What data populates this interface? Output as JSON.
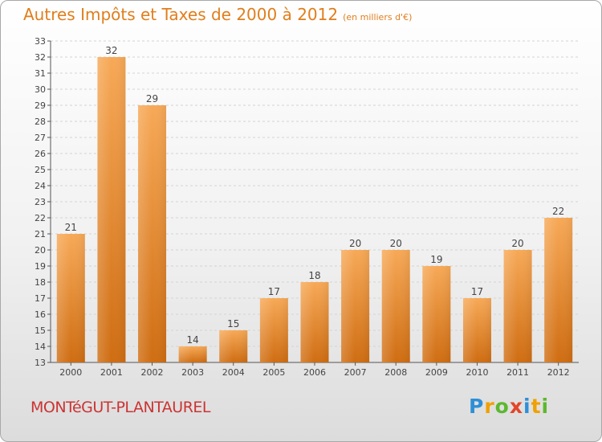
{
  "header": {
    "title": "Autres Impôts et Taxes de 2000 à 2012",
    "unit": "(en milliers d'€)"
  },
  "footer": {
    "commune": "MONTéGUT-PLANTAUREL",
    "logo_letters": [
      {
        "char": "P",
        "color": "#2f8fd6"
      },
      {
        "char": "r",
        "color": "#f0a000"
      },
      {
        "char": "o",
        "color": "#5cb82f"
      },
      {
        "char": "x",
        "color": "#e2452a"
      },
      {
        "char": "i",
        "color": "#2f8fd6"
      },
      {
        "char": "t",
        "color": "#f0a000"
      },
      {
        "char": "i",
        "color": "#5cb82f"
      }
    ]
  },
  "chart_data": {
    "type": "bar",
    "title": "Autres Impôts et Taxes de 2000 à 2012",
    "subtitle": "(en milliers d'€)",
    "categories": [
      "2000",
      "2001",
      "2002",
      "2003",
      "2004",
      "2005",
      "2006",
      "2007",
      "2008",
      "2009",
      "2010",
      "2011",
      "2012"
    ],
    "values": [
      21,
      32,
      29,
      14,
      15,
      17,
      18,
      20,
      20,
      19,
      17,
      20,
      22
    ],
    "ylim": [
      13,
      33
    ],
    "yticks": [
      13,
      14,
      15,
      16,
      17,
      18,
      19,
      20,
      21,
      22,
      23,
      24,
      25,
      26,
      27,
      28,
      29,
      30,
      31,
      32,
      33
    ],
    "grid": "horizontal",
    "bar_color": "#e8892a",
    "legend": "none"
  }
}
